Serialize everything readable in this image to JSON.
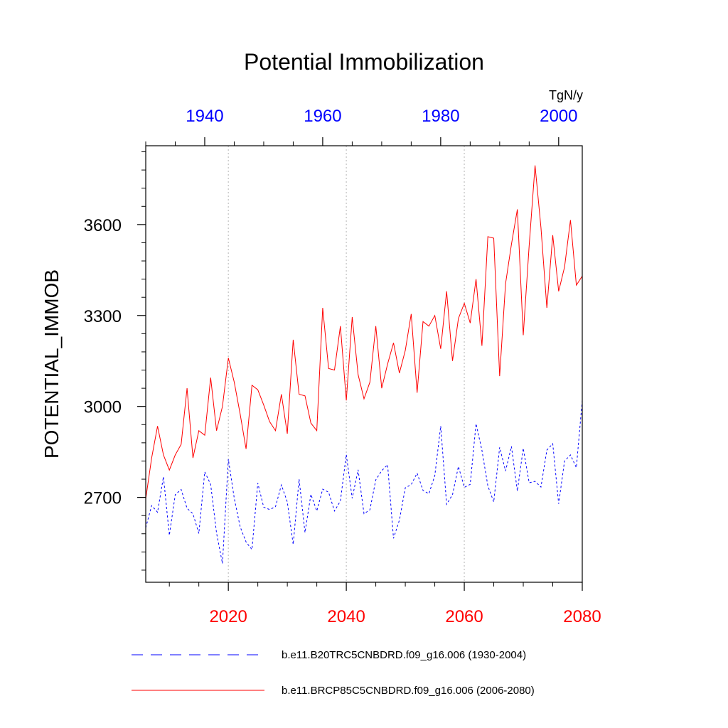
{
  "chart_data": {
    "type": "line",
    "title": "Potential Immobilization",
    "ylabel": "POTENTIAL_IMMOB",
    "units": "TgN/y",
    "ylim": [
      2420,
      3860
    ],
    "yticks": [
      2700,
      3000,
      3300,
      3600
    ],
    "y_minor_step": 60,
    "grid": "vertical dotted at bottom-axis major ticks",
    "bottom_axis": {
      "range": [
        2006,
        2080
      ],
      "ticks": [
        2020,
        2040,
        2060,
        2080
      ],
      "tick_labels": [
        "2020",
        "2040",
        "2060",
        "2080"
      ],
      "minor_step": 5,
      "color": "#ff0000"
    },
    "top_axis": {
      "range": [
        1930,
        2004
      ],
      "ticks": [
        1940,
        1960,
        1980,
        2000
      ],
      "tick_labels": [
        "1940",
        "1960",
        "1980",
        "2000"
      ],
      "minor_step": 5,
      "color": "#0000ff"
    },
    "series": [
      {
        "name": "b.e11.B20TRC5CNBDRD.f09_g16.006 (1930-2004)",
        "axis": "top",
        "color": "#0000ff",
        "dash": "dashed",
        "x_start": 1930,
        "values": [
          2600,
          2673,
          2651,
          2768,
          2575,
          2709,
          2726,
          2664,
          2646,
          2581,
          2784,
          2743,
          2582,
          2482,
          2826,
          2697,
          2603,
          2553,
          2528,
          2747,
          2668,
          2660,
          2669,
          2741,
          2685,
          2545,
          2760,
          2584,
          2710,
          2655,
          2727,
          2717,
          2655,
          2688,
          2841,
          2697,
          2791,
          2646,
          2659,
          2758,
          2788,
          2808,
          2565,
          2625,
          2732,
          2742,
          2780,
          2723,
          2712,
          2772,
          2935,
          2677,
          2709,
          2802,
          2733,
          2743,
          2943,
          2855,
          2738,
          2685,
          2865,
          2787,
          2868,
          2721,
          2862,
          2748,
          2753,
          2734,
          2856,
          2877,
          2679,
          2820,
          2840,
          2798,
          3020
        ]
      },
      {
        "name": "b.e11.BRCP85C5CNBDRD.f09_g16.006 (2006-2080)",
        "axis": "bottom",
        "color": "#ff0000",
        "dash": "solid",
        "x_start": 2006,
        "values": [
          2695,
          2830,
          2935,
          2840,
          2790,
          2840,
          2875,
          3060,
          2830,
          2920,
          2905,
          3095,
          2920,
          3000,
          3160,
          3080,
          2975,
          2860,
          3070,
          3055,
          3005,
          2950,
          2920,
          3040,
          2910,
          3220,
          3040,
          3035,
          2945,
          2920,
          3325,
          3125,
          3120,
          3265,
          3020,
          3295,
          3105,
          3025,
          3080,
          3265,
          3060,
          3140,
          3210,
          3110,
          3185,
          3305,
          3045,
          3280,
          3265,
          3300,
          3190,
          3380,
          3150,
          3290,
          3340,
          3275,
          3420,
          3200,
          3560,
          3555,
          3100,
          3405,
          3535,
          3650,
          3235,
          3530,
          3795,
          3590,
          3325,
          3565,
          3380,
          3460,
          3615,
          3400,
          3430
        ]
      }
    ],
    "legend": {
      "position": "bottom",
      "entries": [
        "b.e11.B20TRC5CNBDRD.f09_g16.006 (1930-2004)",
        "b.e11.BRCP85C5CNBDRD.f09_g16.006 (2006-2080)"
      ]
    }
  }
}
